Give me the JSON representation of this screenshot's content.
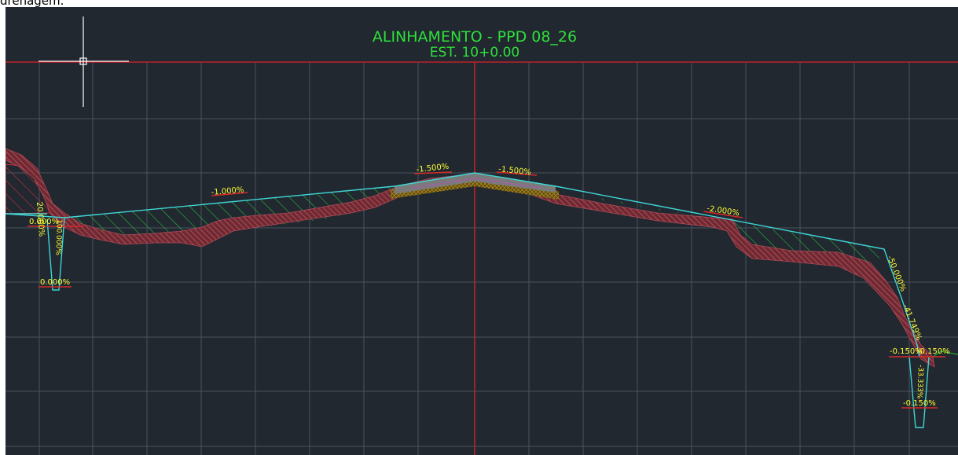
{
  "caption": "drenagem.",
  "drawing": {
    "title_line1": "ALINHAMENTO - PPD 08_26",
    "title_line2": "EST. 10+0.00"
  },
  "labels": {
    "pave_left": "-1.500%",
    "pave_right": "-1.500%",
    "left_shoulder": "-1.000%",
    "right_shoulder": "-2.000%",
    "right_fill_slope": "-50.000%",
    "right_fill_slope2": "-41.749%",
    "left_ditch_bottom": "0.000%",
    "left_ditch_slope": "20.000%",
    "left_ditch_top": "0.000%",
    "left_ditch_mid": "100.000%",
    "right_ditch_top_a": "-0.150%",
    "right_ditch_top_b": "-0.150%",
    "right_ditch_bottom": "-0.150%",
    "right_ditch_side": "-33.333%"
  },
  "colors": {
    "background": "#212830",
    "grid": "#4a525c",
    "axis": "#c0202a",
    "title": "#2ee03a",
    "design_line": "#3fd6d6",
    "label": "#ffff33",
    "label_underline": "#d42a2a",
    "ground": "#b04a58",
    "hatch_green": "#26c23a",
    "pavement": "#7a7a7a",
    "subbase": "#9a7a20",
    "crosshair": "#ffffff"
  }
}
